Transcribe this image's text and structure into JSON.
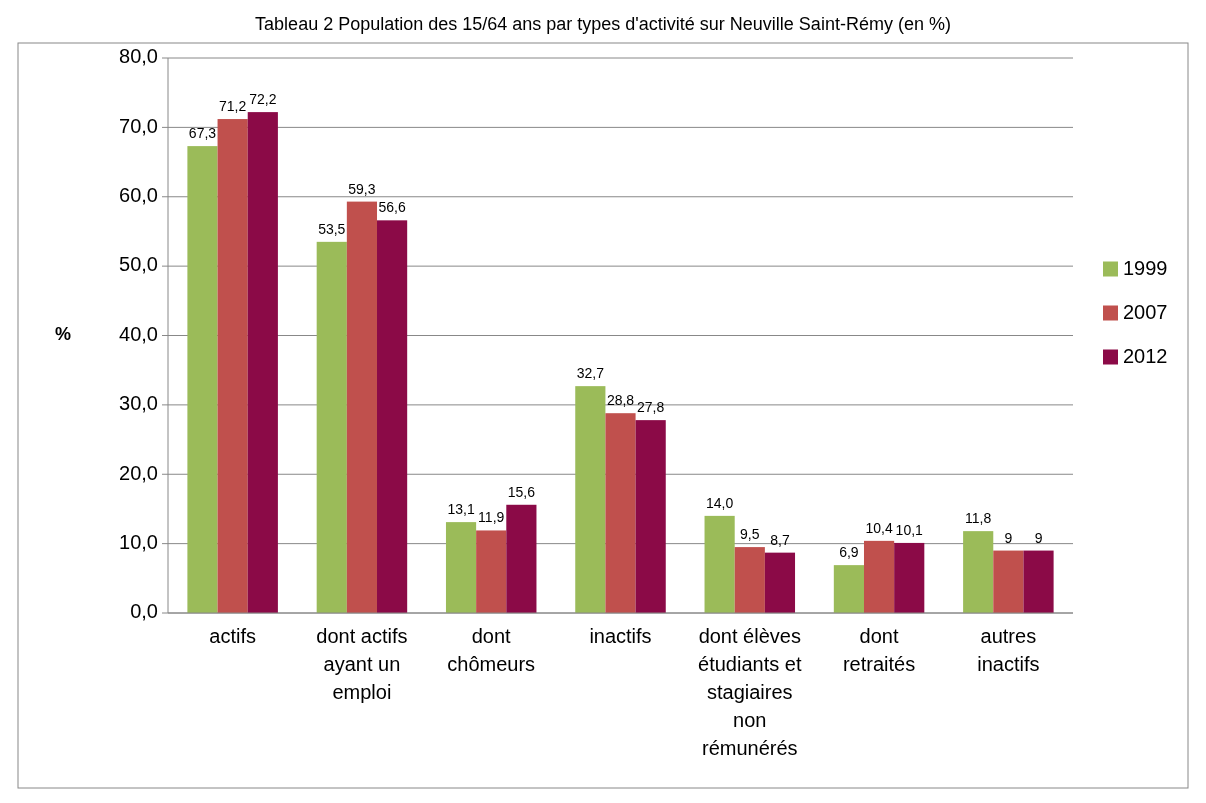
{
  "chart_data": {
    "type": "bar",
    "title": "Tableau 2 Population des 15/64 ans par types d'activité sur Neuville Saint-Rémy (en %)",
    "ylabel": "%",
    "categories": [
      "actifs",
      "dont actifs ayant un emploi",
      "dont chômeurs",
      "inactifs",
      "dont élèves étudiants et stagiaires non rémunérés",
      "dont retraités",
      "autres inactifs"
    ],
    "series": [
      {
        "name": "1999",
        "color": "#9bbb59",
        "values": [
          67.3,
          53.5,
          13.1,
          32.7,
          14.0,
          6.9,
          11.8
        ],
        "value_labels": [
          "67,3",
          "53,5",
          "13,1",
          "32,7",
          "14,0",
          "6,9",
          "11,8"
        ]
      },
      {
        "name": "2007",
        "color": "#c0504d",
        "values": [
          71.2,
          59.3,
          11.9,
          28.8,
          9.5,
          10.4,
          9
        ],
        "value_labels": [
          "71,2",
          "59,3",
          "11,9",
          "28,8",
          "9,5",
          "10,4",
          "9"
        ]
      },
      {
        "name": "2012",
        "color": "#8b0a47",
        "values": [
          72.2,
          56.6,
          15.6,
          27.8,
          8.7,
          10.1,
          9
        ],
        "value_labels": [
          "72,2",
          "56,6",
          "15,6",
          "27,8",
          "8,7",
          "10,1",
          "9"
        ]
      }
    ],
    "ylim": [
      0,
      80
    ],
    "yticks": [
      {
        "value": 0,
        "label": "0,0"
      },
      {
        "value": 10,
        "label": "10,0"
      },
      {
        "value": 20,
        "label": "20,0"
      },
      {
        "value": 30,
        "label": "30,0"
      },
      {
        "value": 40,
        "label": "40,0"
      },
      {
        "value": 50,
        "label": "50,0"
      },
      {
        "value": 60,
        "label": "60,0"
      },
      {
        "value": 70,
        "label": "70,0"
      },
      {
        "value": 80,
        "label": "80,0"
      }
    ],
    "grid": "y",
    "legend": "right"
  }
}
